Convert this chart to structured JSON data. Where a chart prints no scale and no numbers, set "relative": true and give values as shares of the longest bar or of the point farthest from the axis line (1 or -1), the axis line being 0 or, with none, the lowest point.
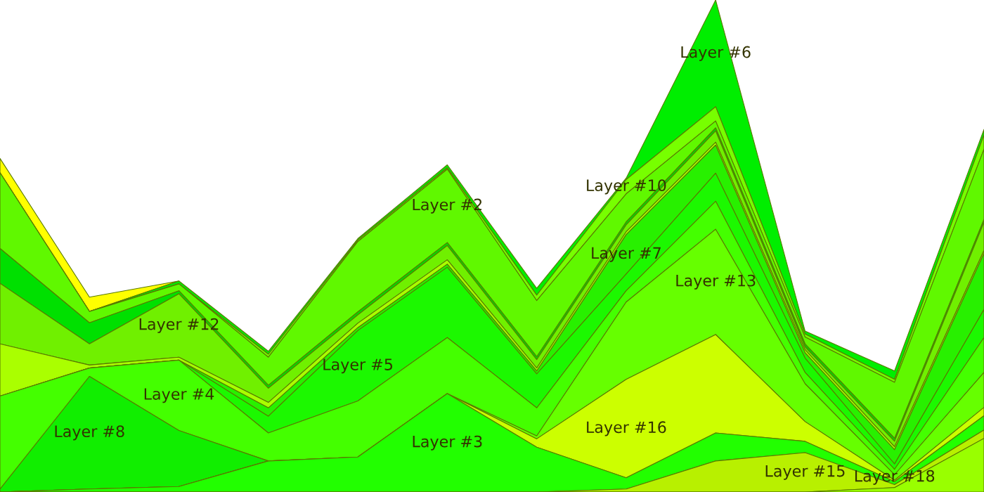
{
  "chart_data": {
    "type": "area",
    "stacked": true,
    "relative": true,
    "categories": [
      null,
      null,
      null,
      null,
      null,
      null,
      null,
      null,
      null,
      null,
      null,
      null
    ],
    "series": [
      {
        "name": "Layer #18",
        "color": "#99ff00",
        "values": [
          0,
          0,
          0,
          0,
          0,
          0,
          0,
          0,
          0,
          0,
          0.009,
          0.109
        ]
      },
      {
        "name": "Layer #15",
        "color": "#b8f000",
        "values": [
          0,
          0,
          0,
          0,
          0,
          0,
          0,
          0.006,
          0.063,
          0.08,
          0.006,
          0.017
        ]
      },
      {
        "name": "Layer #3",
        "color": "#22ff00",
        "values": [
          0,
          0.006,
          0.011,
          0.063,
          0.071,
          0.2,
          0.091,
          0.023,
          0.057,
          0.023,
          0.006,
          0.029
        ]
      },
      {
        "name": "Layer #16",
        "color": "#ccff00",
        "values": [
          0,
          0,
          0,
          0,
          0,
          0,
          0.017,
          0.2,
          0.2,
          0.04,
          0.003,
          0.017
        ]
      },
      {
        "name": "Layer #13",
        "color": "#66ff00",
        "values": [
          0,
          0,
          0,
          0,
          0,
          0,
          0.006,
          0.157,
          0.214,
          0.077,
          0.011,
          0.071
        ]
      },
      {
        "name": "Layer #8",
        "color": "#11ee00",
        "values": [
          0.006,
          0.229,
          0.114,
          0,
          null,
          null,
          null,
          null,
          null,
          null,
          null,
          null
        ]
      },
      {
        "name": "Layer #4",
        "color": "#44ff00",
        "values": [
          0.189,
          0.017,
          0.143,
          0.057,
          0.114,
          0.114,
          0.057,
          0.023,
          0.057,
          0.023,
          0.011,
          0.071
        ]
      },
      {
        "name": "Layer #5",
        "color": "#1cf800",
        "values": [
          0,
          0,
          0,
          0.034,
          0.143,
          0.143,
          0.069,
          0.034,
          0.057,
          0.029,
          0.011,
          0.057
        ]
      },
      {
        "name": "Layer #7",
        "color": "#28f000",
        "values": [
          0,
          0,
          0,
          0.017,
          0.006,
          0.006,
          0.006,
          0.08,
          0.057,
          0.011,
          0.029,
          0.114
        ]
      },
      {
        "color": "#aaff00",
        "values": [
          0.106,
          0.006,
          0.006,
          0.011,
          0.009,
          0.009,
          0.006,
          0.006,
          0.006,
          0.006,
          0.006,
          0.006
        ]
      },
      {
        "name": "Layer #12",
        "color": "#70f000",
        "values": [
          0.123,
          0.043,
          0.129,
          0.029,
          0.017,
          0.029,
          0.017,
          0.014,
          0.023,
          0.006,
          0.011,
          0.057
        ]
      },
      {
        "color": "#00e000",
        "values": [
          0.071,
          0.043,
          0.006,
          0.006,
          0.006,
          0.006,
          0.006,
          0.006,
          0.006,
          0.006,
          0.006,
          0.006
        ]
      },
      {
        "name": "Layer #2",
        "color": "#60f800",
        "values": [
          0.154,
          0.023,
          0.014,
          0.057,
          0.143,
          0.149,
          0.114,
          0.057,
          0.014,
          0.014,
          0.114,
          0.143
        ]
      },
      {
        "name": "Layer #10",
        "color": "#77ff00",
        "values": [
          0,
          0,
          0,
          0.006,
          0.003,
          0.003,
          0.011,
          0.029,
          0.029,
          0.006,
          0.006,
          0.029
        ]
      },
      {
        "name": "Layer #6",
        "color": "#00ee00",
        "values": [
          0,
          0,
          0.006,
          0.006,
          0.003,
          0.006,
          0.014,
          0.003,
          0.217,
          0.006,
          0.017,
          0.011
        ]
      },
      {
        "color": "#ffff00",
        "values": [
          0.029,
          0.029,
          0,
          null,
          null,
          null,
          null,
          null,
          null,
          null,
          null,
          null
        ]
      }
    ]
  }
}
